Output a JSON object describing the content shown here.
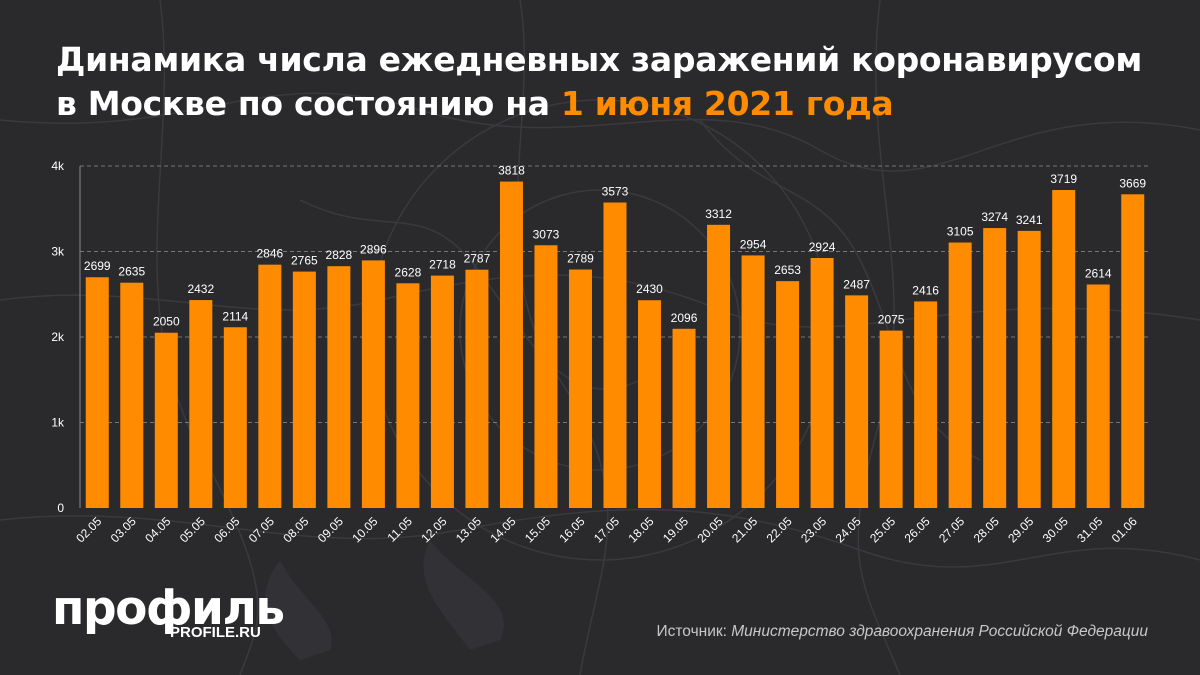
{
  "header": {
    "title_main": "Динамика числа ежедневных заражений коронавирусом в Москве по состоянию на ",
    "title_date": "1 июня 2021 года"
  },
  "colors": {
    "background": "#2a2a2d",
    "bar": "#ff8c00",
    "accent": "#ff8c00",
    "text": "#ffffff",
    "grid": "#777777"
  },
  "footer": {
    "logo_text": "профиль",
    "logo_url": "PROFILE.RU",
    "source_label": "Источник:",
    "source_org": "Министерство здравоохранения Российской Федерации"
  },
  "chart_data": {
    "type": "bar",
    "title": "Динамика числа ежедневных заражений коронавирусом в Москве по состоянию на 1 июня 2021 года",
    "xlabel": "",
    "ylabel": "",
    "ylim": [
      0,
      4000
    ],
    "yticks": [
      0,
      1000,
      2000,
      3000,
      4000
    ],
    "ytick_labels": [
      "0",
      "1k",
      "2k",
      "3k",
      "4k"
    ],
    "grid": true,
    "categories": [
      "02.05",
      "03.05",
      "04.05",
      "05.05",
      "06.05",
      "07.05",
      "08.05",
      "09.05",
      "10.05",
      "11.05",
      "12.05",
      "13.05",
      "14.05",
      "15.05",
      "16.05",
      "17.05",
      "18.05",
      "19.05",
      "20.05",
      "21.05",
      "22.05",
      "23.05",
      "24.05",
      "25.05",
      "26.05",
      "27.05",
      "28.05",
      "29.05",
      "30.05",
      "31.05",
      "01.06"
    ],
    "values": [
      2699,
      2635,
      2050,
      2432,
      2114,
      2846,
      2765,
      2828,
      2896,
      2628,
      2718,
      2787,
      3818,
      3073,
      2789,
      3573,
      2430,
      2096,
      3312,
      2954,
      2653,
      2924,
      2487,
      2075,
      2416,
      3105,
      3274,
      3241,
      3719,
      2614,
      3669
    ]
  }
}
